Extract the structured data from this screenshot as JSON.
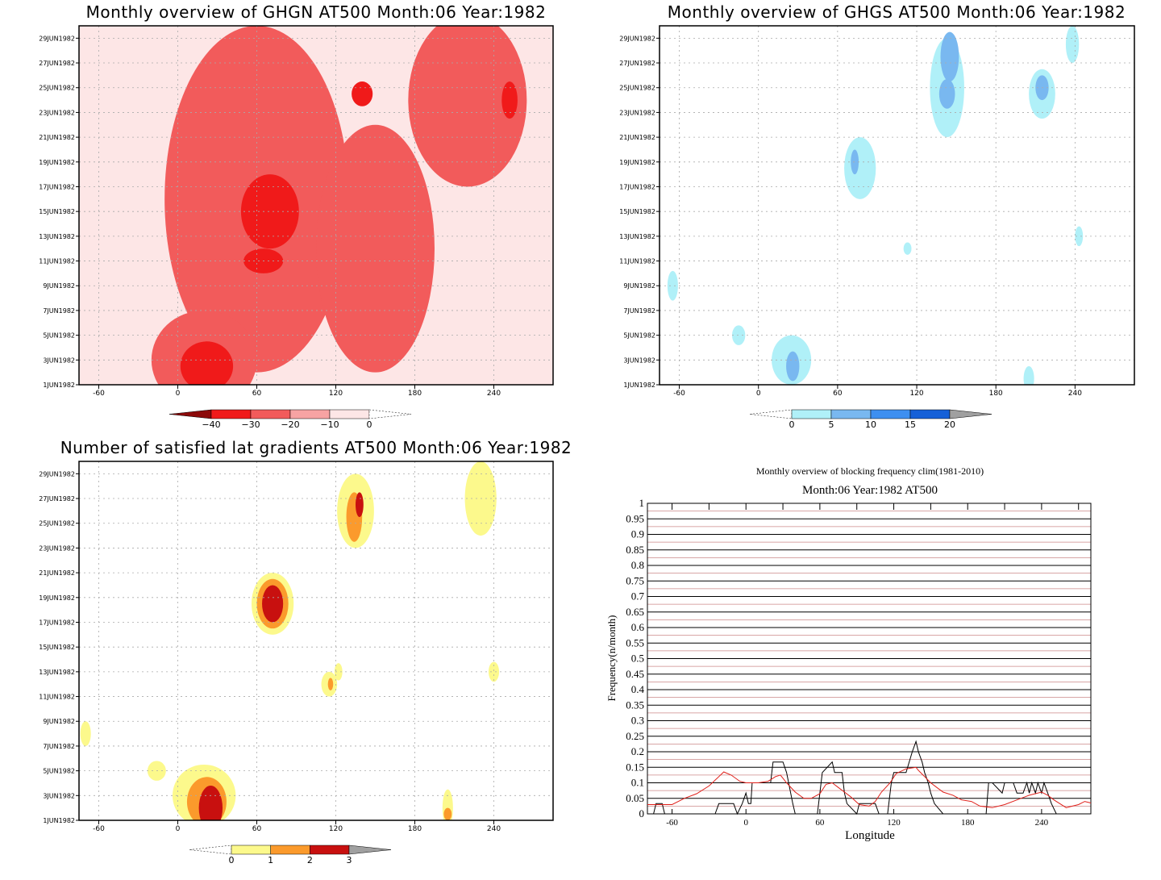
{
  "chart_data": [
    {
      "type": "heatmap",
      "title": "Monthly overview of GHGN AT500 Month:06 Year:1982",
      "x_ticks": [
        -60,
        0,
        60,
        120,
        180,
        240
      ],
      "xlim": [
        -75,
        285
      ],
      "y_ticks": [
        "1JUN1982",
        "3JUN1982",
        "5JUN1982",
        "7JUN1982",
        "9JUN1982",
        "11JUN1982",
        "13JUN1982",
        "15JUN1982",
        "17JUN1982",
        "19JUN1982",
        "21JUN1982",
        "23JUN1982",
        "25JUN1982",
        "27JUN1982",
        "29JUN1982"
      ],
      "colorbar": {
        "ticks": [
          "−40",
          "−30",
          "−20",
          "−10",
          "0"
        ],
        "colors": [
          "#8c0a0a",
          "#f01a1a",
          "#f25b5b",
          "#f7a3a3",
          "#fde6e6"
        ],
        "extend": "both"
      },
      "grid": true,
      "blobs": [
        {
          "lon": 60,
          "day": 16,
          "rlon": 70,
          "rday": 14,
          "level": 2
        },
        {
          "lon": 20,
          "day": 3,
          "rlon": 40,
          "rday": 4,
          "level": 2
        },
        {
          "lon": 150,
          "day": 12,
          "rlon": 45,
          "rday": 10,
          "level": 2
        },
        {
          "lon": 220,
          "day": 24,
          "rlon": 45,
          "rday": 7,
          "level": 2
        },
        {
          "lon": 70,
          "day": 15,
          "rlon": 22,
          "rday": 3,
          "level": 3
        },
        {
          "lon": 65,
          "day": 11,
          "rlon": 15,
          "rday": 1,
          "level": 3
        },
        {
          "lon": 22,
          "day": 2.5,
          "rlon": 20,
          "rday": 2,
          "level": 3
        },
        {
          "lon": 140,
          "day": 24.5,
          "rlon": 8,
          "rday": 1,
          "level": 3
        },
        {
          "lon": 252,
          "day": 24,
          "rlon": 6,
          "rday": 1.5,
          "level": 3
        }
      ]
    },
    {
      "type": "heatmap",
      "title": "Monthly overview of GHGS AT500 Month:06 Year:1982",
      "x_ticks": [
        -60,
        0,
        60,
        120,
        180,
        240
      ],
      "xlim": [
        -75,
        285
      ],
      "y_ticks": [
        "1JUN1982",
        "3JUN1982",
        "5JUN1982",
        "7JUN1982",
        "9JUN1982",
        "11JUN1982",
        "13JUN1982",
        "15JUN1982",
        "17JUN1982",
        "19JUN1982",
        "21JUN1982",
        "23JUN1982",
        "25JUN1982",
        "27JUN1982",
        "29JUN1982"
      ],
      "colorbar": {
        "ticks": [
          "0",
          "5",
          "10",
          "15",
          "20"
        ],
        "colors": [
          "#b0f0f8",
          "#79b8f0",
          "#3d8ff0",
          "#1560d8",
          "#a0a0a0"
        ],
        "extend": "both"
      },
      "grid": true,
      "blobs": [
        {
          "lon": 143,
          "day": 25,
          "rlon": 13,
          "rday": 4,
          "level": 1
        },
        {
          "lon": 145,
          "day": 27.5,
          "rlon": 7,
          "rday": 2,
          "level": 2
        },
        {
          "lon": 143,
          "day": 24.5,
          "rlon": 6,
          "rday": 1.2,
          "level": 2
        },
        {
          "lon": 215,
          "day": 24.5,
          "rlon": 10,
          "rday": 2,
          "level": 1
        },
        {
          "lon": 215,
          "day": 25,
          "rlon": 5,
          "rday": 1,
          "level": 2
        },
        {
          "lon": 238,
          "day": 28.5,
          "rlon": 5,
          "rday": 1.5,
          "level": 1
        },
        {
          "lon": 77,
          "day": 18.5,
          "rlon": 12,
          "rday": 2.5,
          "level": 1
        },
        {
          "lon": 73,
          "day": 19,
          "rlon": 3,
          "rday": 1,
          "level": 2
        },
        {
          "lon": 25,
          "day": 3,
          "rlon": 15,
          "rday": 2,
          "level": 1
        },
        {
          "lon": 26,
          "day": 2.5,
          "rlon": 5,
          "rday": 1.2,
          "level": 2
        },
        {
          "lon": -15,
          "day": 5,
          "rlon": 5,
          "rday": 0.8,
          "level": 1
        },
        {
          "lon": -65,
          "day": 9,
          "rlon": 4,
          "rday": 1.2,
          "level": 1
        },
        {
          "lon": 205,
          "day": 1.5,
          "rlon": 4,
          "rday": 1,
          "level": 1
        },
        {
          "lon": 243,
          "day": 13,
          "rlon": 3,
          "rday": 0.8,
          "level": 1
        },
        {
          "lon": 113,
          "day": 12,
          "rlon": 3,
          "rday": 0.5,
          "level": 1
        }
      ]
    },
    {
      "type": "heatmap",
      "title": "Number of satisfied lat gradients AT500 Month:06 Year:1982",
      "x_ticks": [
        -60,
        0,
        60,
        120,
        180,
        240
      ],
      "xlim": [
        -75,
        285
      ],
      "y_ticks": [
        "1JUN1982",
        "3JUN1982",
        "5JUN1982",
        "7JUN1982",
        "9JUN1982",
        "11JUN1982",
        "13JUN1982",
        "15JUN1982",
        "17JUN1982",
        "19JUN1982",
        "21JUN1982",
        "23JUN1982",
        "25JUN1982",
        "27JUN1982",
        "29JUN1982"
      ],
      "colorbar": {
        "ticks": [
          "0",
          "1",
          "2",
          "3"
        ],
        "colors": [
          "#fcf98c",
          "#fb9a2c",
          "#c8100f",
          "#a0a0a0"
        ],
        "extend": "both"
      },
      "grid": true,
      "blobs": [
        {
          "lon": 135,
          "day": 26,
          "rlon": 14,
          "rday": 3,
          "level": 1
        },
        {
          "lon": 134,
          "day": 25.5,
          "rlon": 6,
          "rday": 2,
          "level": 2
        },
        {
          "lon": 138,
          "day": 26.5,
          "rlon": 3,
          "rday": 1,
          "level": 3
        },
        {
          "lon": 230,
          "day": 27,
          "rlon": 12,
          "rday": 3,
          "level": 1
        },
        {
          "lon": 72,
          "day": 18.5,
          "rlon": 16,
          "rday": 2.5,
          "level": 1
        },
        {
          "lon": 72,
          "day": 18.5,
          "rlon": 12,
          "rday": 2,
          "level": 2
        },
        {
          "lon": 72,
          "day": 18.5,
          "rlon": 8,
          "rday": 1.5,
          "level": 3
        },
        {
          "lon": 20,
          "day": 3,
          "rlon": 24,
          "rday": 2.5,
          "level": 1
        },
        {
          "lon": 22,
          "day": 2.5,
          "rlon": 15,
          "rday": 2,
          "level": 2
        },
        {
          "lon": 25,
          "day": 2,
          "rlon": 9,
          "rday": 1.8,
          "level": 3
        },
        {
          "lon": -16,
          "day": 5,
          "rlon": 7,
          "rday": 0.8,
          "level": 1
        },
        {
          "lon": -70,
          "day": 8,
          "rlon": 4,
          "rday": 1,
          "level": 1
        },
        {
          "lon": 115,
          "day": 12,
          "rlon": 6,
          "rday": 1,
          "level": 1
        },
        {
          "lon": 116,
          "day": 12,
          "rlon": 2,
          "rday": 0.5,
          "level": 2
        },
        {
          "lon": 122,
          "day": 13,
          "rlon": 3,
          "rday": 0.7,
          "level": 1
        },
        {
          "lon": 240,
          "day": 13,
          "rlon": 4,
          "rday": 0.8,
          "level": 1
        },
        {
          "lon": 205,
          "day": 2,
          "rlon": 4,
          "rday": 1.5,
          "level": 1
        },
        {
          "lon": 205,
          "day": 1.5,
          "rlon": 3,
          "rday": 0.5,
          "level": 2
        }
      ]
    },
    {
      "type": "line",
      "title": "Monthly overview of blocking frequency clim(1981-2010)",
      "subtitle": "Month:06 Year:1982  AT500",
      "xlabel": "Longitude",
      "ylabel": "Frequency(n/month)",
      "x_ticks": [
        -60,
        0,
        60,
        120,
        180,
        240
      ],
      "xlim": [
        -80,
        280
      ],
      "ylim": [
        0,
        1
      ],
      "y_ticks": [
        "0",
        "0.05",
        "0.1",
        "0.15",
        "0.2",
        "0.25",
        "0.3",
        "0.35",
        "0.4",
        "0.45",
        "0.5",
        "0.55",
        "0.6",
        "0.65",
        "0.7",
        "0.75",
        "0.8",
        "0.85",
        "0.9",
        "0.95",
        "1"
      ],
      "grid": true,
      "series": [
        {
          "color": "#000000",
          "x": [
            -80,
            -75,
            -73,
            -68,
            -66,
            -60,
            -25,
            -22,
            -10,
            -7,
            -3,
            0,
            2,
            4,
            5,
            20,
            22,
            30,
            33,
            38,
            40,
            43,
            50,
            58,
            60,
            62,
            70,
            72,
            78,
            80,
            82,
            90,
            92,
            105,
            108,
            115,
            118,
            120,
            122,
            128,
            130,
            135,
            138,
            140,
            143,
            145,
            148,
            150,
            153,
            160,
            163,
            165,
            170,
            175,
            195,
            197,
            200,
            208,
            210,
            217,
            220,
            225,
            228,
            230,
            232,
            235,
            237,
            240,
            242,
            245,
            248,
            252,
            255
          ],
          "y": [
            0,
            0,
            0.033,
            0.033,
            0,
            0,
            0,
            0.033,
            0.033,
            0,
            0.033,
            0.067,
            0.033,
            0.033,
            0.1,
            0.1,
            0.167,
            0.167,
            0.133,
            0.033,
            0,
            0,
            0,
            0,
            0.067,
            0.133,
            0.167,
            0.133,
            0.133,
            0.067,
            0.033,
            0,
            0.033,
            0.033,
            0,
            0,
            0.1,
            0.133,
            0.133,
            0.133,
            0.133,
            0.2,
            0.233,
            0.2,
            0.167,
            0.133,
            0.1,
            0.067,
            0.033,
            0,
            0,
            0,
            0,
            0,
            0,
            0.1,
            0.1,
            0.067,
            0.1,
            0.1,
            0.067,
            0.067,
            0.1,
            0.067,
            0.1,
            0.067,
            0.1,
            0.067,
            0.1,
            0.067,
            0.033,
            0,
            0
          ]
        },
        {
          "color": "#e0201a",
          "x": [
            -80,
            -70,
            -60,
            -50,
            -40,
            -30,
            -22,
            -18,
            -12,
            -5,
            0,
            5,
            10,
            18,
            24,
            28,
            33,
            40,
            47,
            53,
            60,
            65,
            70,
            75,
            80,
            85,
            92,
            100,
            105,
            110,
            117,
            122,
            130,
            138,
            140,
            145,
            150,
            155,
            160,
            168,
            175,
            183,
            190,
            200,
            210,
            220,
            230,
            240,
            245,
            250,
            260,
            265,
            270,
            275,
            280
          ],
          "y": [
            0.03,
            0.03,
            0.03,
            0.05,
            0.065,
            0.09,
            0.12,
            0.135,
            0.125,
            0.105,
            0.1,
            0.1,
            0.1,
            0.105,
            0.12,
            0.125,
            0.1,
            0.07,
            0.05,
            0.05,
            0.065,
            0.095,
            0.1,
            0.085,
            0.07,
            0.055,
            0.03,
            0.025,
            0.04,
            0.07,
            0.1,
            0.13,
            0.145,
            0.15,
            0.14,
            0.12,
            0.1,
            0.085,
            0.07,
            0.06,
            0.045,
            0.04,
            0.025,
            0.02,
            0.03,
            0.045,
            0.06,
            0.07,
            0.06,
            0.045,
            0.02,
            0.025,
            0.03,
            0.04,
            0.035
          ]
        }
      ]
    }
  ]
}
